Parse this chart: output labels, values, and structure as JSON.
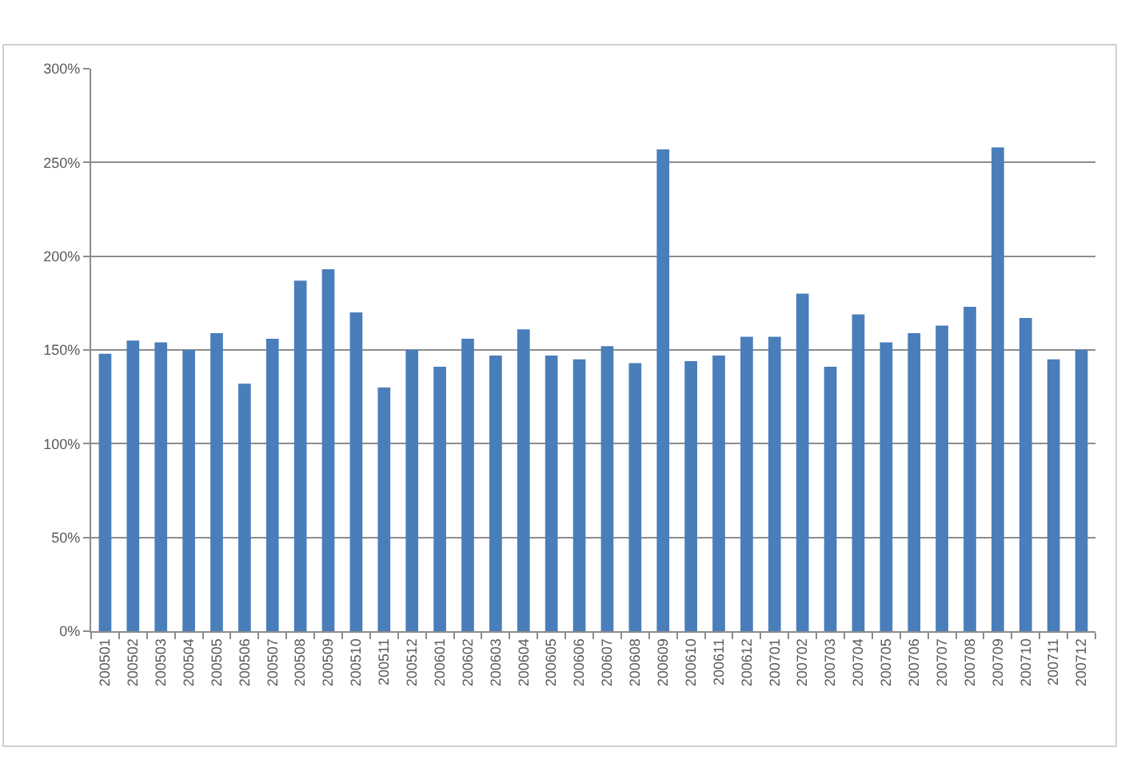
{
  "chart_data": {
    "type": "bar",
    "categories": [
      "200501",
      "200502",
      "200503",
      "200504",
      "200505",
      "200506",
      "200507",
      "200508",
      "200509",
      "200510",
      "200511",
      "200512",
      "200601",
      "200602",
      "200603",
      "200604",
      "200605",
      "200606",
      "200607",
      "200608",
      "200609",
      "200610",
      "200611",
      "200612",
      "200701",
      "200702",
      "200703",
      "200704",
      "200705",
      "200706",
      "200707",
      "200708",
      "200709",
      "200710",
      "200711",
      "200712"
    ],
    "values": [
      148,
      155,
      154,
      150,
      159,
      132,
      156,
      187,
      193,
      170,
      130,
      150,
      141,
      156,
      147,
      161,
      147,
      145,
      152,
      143,
      257,
      144,
      147,
      157,
      157,
      180,
      141,
      169,
      154,
      159,
      163,
      173,
      258,
      167,
      145,
      150
    ],
    "color": "#4a7ebb",
    "ylim": [
      0,
      300
    ],
    "yticks": [
      {
        "value": 0,
        "label": "0%"
      },
      {
        "value": 50,
        "label": "50%"
      },
      {
        "value": 100,
        "label": "100%"
      },
      {
        "value": 150,
        "label": "150%"
      },
      {
        "value": 200,
        "label": "200%"
      },
      {
        "value": 250,
        "label": "250%"
      },
      {
        "value": 300,
        "label": "300%"
      }
    ],
    "grid": "y"
  }
}
